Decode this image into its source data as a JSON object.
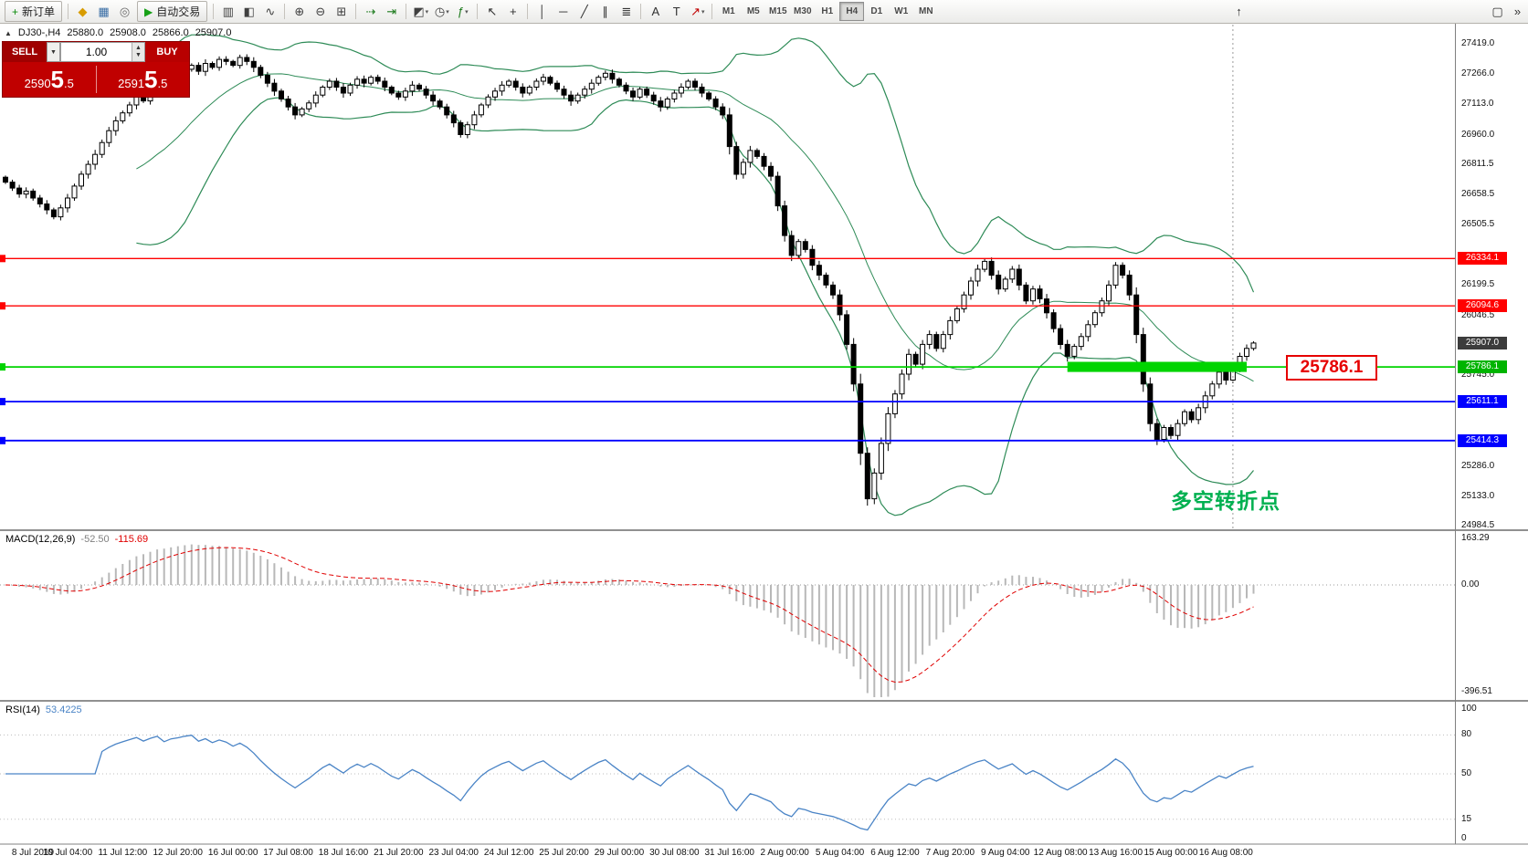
{
  "toolbar": {
    "new_order_label": "新订单",
    "autotrade_label": "自动交易",
    "timeframes": [
      "M1",
      "M5",
      "M15",
      "M30",
      "H1",
      "H4",
      "D1",
      "W1",
      "MN"
    ],
    "active_timeframe": "H4",
    "icon_groups": [
      [
        "metaeditor-icon",
        "market-watch-icon",
        "strategy-tester-icon"
      ],
      [
        "bar-chart-icon",
        "candlestick-icon",
        "line-chart-icon"
      ],
      [
        "zoom-in-icon",
        "zoom-out-icon",
        "tile-windows-icon"
      ],
      [
        "auto-scroll-icon",
        "chart-shift-icon"
      ],
      [
        "new-chart-icon",
        "profiles-icon",
        "indicators-icon"
      ],
      [
        "cursor-icon",
        "crosshair-icon"
      ],
      [
        "vertical-line-icon",
        "horizontal-line-icon",
        "trendline-icon",
        "channel-icon",
        "fibonacci-icon"
      ],
      [
        "text-icon",
        "text-label-icon",
        "arrows-icon"
      ]
    ],
    "right_icons": [
      "scroll-up-icon",
      "window-icon",
      "more-icon"
    ]
  },
  "chart": {
    "header": {
      "symbol": "DJ30-,H4",
      "open": "25880.0",
      "high": "25908.0",
      "low": "25866.0",
      "close": "25907.0"
    },
    "trade_panel": {
      "sell_label": "SELL",
      "buy_label": "BUY",
      "sell_price": "25905.5",
      "buy_price": "25915.5",
      "volume": "1.00"
    },
    "annotation_price_label": "25786.1",
    "turning_point_label": "多空转折点",
    "price_axis": [
      "27419.0",
      "27266.0",
      "27113.0",
      "26960.0",
      "26811.5",
      "26658.5",
      "26505.5",
      "26199.5",
      "26046.5",
      "25745.0",
      "25592.0",
      "25286.0",
      "25133.0",
      "24984.5"
    ],
    "price_tags": [
      {
        "label": "26334.1",
        "bg": "#ff0000"
      },
      {
        "label": "26094.6",
        "bg": "#ff0000"
      },
      {
        "label": "25907.0",
        "bg": "#3c3c3c"
      },
      {
        "label": "25786.1",
        "bg": "#00b400"
      },
      {
        "label": "25611.1",
        "bg": "#0000ff"
      },
      {
        "label": "25414.3",
        "bg": "#0000ff"
      }
    ],
    "time_axis": [
      "8 Jul 2019",
      "10 Jul 04:00",
      "11 Jul 12:00",
      "12 Jul 20:00",
      "16 Jul 00:00",
      "17 Jul 08:00",
      "18 Jul 16:00",
      "21 Jul 20:00",
      "23 Jul 04:00",
      "24 Jul 12:00",
      "25 Jul 20:00",
      "29 Jul 00:00",
      "30 Jul 08:00",
      "31 Jul 16:00",
      "2 Aug 00:00",
      "5 Aug 04:00",
      "6 Aug 12:00",
      "7 Aug 20:00",
      "9 Aug 04:00",
      "12 Aug 08:00",
      "13 Aug 16:00",
      "15 Aug 00:00",
      "16 Aug 08:00"
    ],
    "time_axis_indices": [
      1,
      9,
      17,
      25,
      33,
      41,
      49,
      57,
      65,
      73,
      81,
      89,
      97,
      105,
      113,
      121,
      129,
      137,
      145,
      153,
      161,
      169,
      177
    ]
  },
  "macd": {
    "name": "MACD(12,26,9)",
    "value_main": "-52.50",
    "value_signal": "-115.69",
    "scale": [
      "163.29",
      "0.00",
      "-396.51"
    ]
  },
  "rsi": {
    "name": "RSI(14)",
    "value": "53.4225",
    "scale": [
      "100",
      "80",
      "50",
      "15",
      "0"
    ]
  },
  "chart_data": {
    "type": "candlestick",
    "symbol": "DJ30-",
    "timeframe": "H4",
    "price_range": [
      24984.5,
      27419.0
    ],
    "current_price": 25907.0,
    "bid": 25905.5,
    "ask": 25915.5,
    "closes": [
      26720,
      26690,
      26660,
      26675,
      26640,
      26610,
      26580,
      26545,
      26590,
      26640,
      26700,
      26760,
      26810,
      26860,
      26920,
      26980,
      27030,
      27070,
      27110,
      27150,
      27130,
      27180,
      27220,
      27190,
      27240,
      27260,
      27290,
      27310,
      27280,
      27320,
      27300,
      27340,
      27330,
      27310,
      27350,
      27330,
      27300,
      27260,
      27220,
      27180,
      27140,
      27100,
      27060,
      27090,
      27120,
      27160,
      27200,
      27230,
      27200,
      27170,
      27210,
      27240,
      27220,
      27250,
      27230,
      27200,
      27170,
      27150,
      27180,
      27210,
      27190,
      27160,
      27130,
      27100,
      27060,
      27020,
      26960,
      27010,
      27060,
      27110,
      27150,
      27180,
      27210,
      27230,
      27200,
      27170,
      27200,
      27230,
      27250,
      27220,
      27190,
      27160,
      27130,
      27160,
      27190,
      27220,
      27250,
      27270,
      27240,
      27210,
      27180,
      27150,
      27190,
      27160,
      27130,
      27100,
      27140,
      27170,
      27200,
      27230,
      27200,
      27170,
      27140,
      27100,
      27060,
      26900,
      26760,
      26820,
      26880,
      26850,
      26800,
      26750,
      26600,
      26450,
      26350,
      26420,
      26380,
      26300,
      26250,
      26200,
      26150,
      26050,
      25900,
      25700,
      25350,
      25120,
      25250,
      25400,
      25550,
      25650,
      25750,
      25850,
      25800,
      25900,
      25950,
      25880,
      25950,
      26020,
      26080,
      26150,
      26220,
      26280,
      26320,
      26250,
      26180,
      26230,
      26280,
      26200,
      26120,
      26180,
      26130,
      26060,
      25980,
      25900,
      25840,
      25890,
      25940,
      26000,
      26060,
      26120,
      26200,
      26300,
      26250,
      26150,
      25950,
      25700,
      25500,
      25420,
      25480,
      25440,
      25500,
      25560,
      25520,
      25580,
      25640,
      25700,
      25760,
      25720,
      25780,
      25840,
      25880,
      25907
    ],
    "indicators": {
      "bollinger": {
        "period": 20,
        "deviation": 2,
        "color": "#2e8b57"
      },
      "macd": {
        "params": "12,26,9",
        "range": [
          -396.51,
          163.29
        ]
      },
      "rsi": {
        "period": 14,
        "range": [
          0,
          100
        ],
        "levels": [
          80,
          50,
          15
        ]
      }
    },
    "levels": [
      {
        "price": 26334.1,
        "color": "#ff0000",
        "type": "resistance"
      },
      {
        "price": 26094.6,
        "color": "#ff0000",
        "type": "resistance"
      },
      {
        "price": 25786.1,
        "color": "#00d400",
        "type": "support"
      },
      {
        "price": 25611.1,
        "color": "#0000ff",
        "type": "support"
      },
      {
        "price": 25414.3,
        "color": "#0000ff",
        "type": "support"
      }
    ],
    "green_zone": {
      "price_top": 25812,
      "price_bottom": 25761,
      "start_index": 154,
      "end_index": 180
    },
    "separator_index": 178
  }
}
